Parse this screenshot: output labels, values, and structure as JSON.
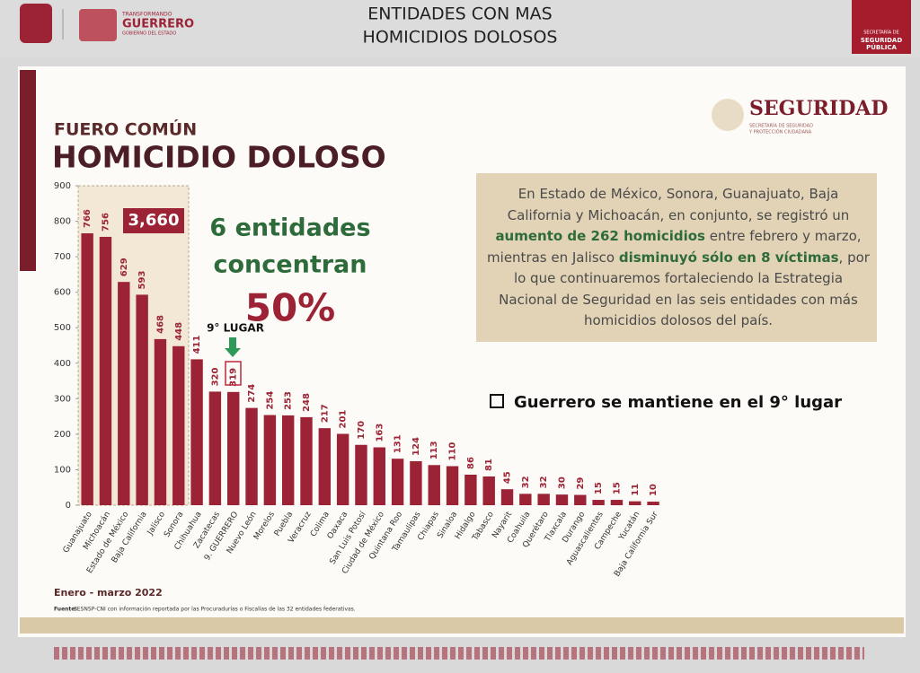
{
  "header": {
    "title_lines": [
      "ENTIDADES CON MAS",
      "HOMICIDIOS DOLOSOS"
    ],
    "left_logo": [
      "TRANSFORMANDO",
      "GUERRERO",
      "GOBIERNO DEL ESTADO"
    ],
    "right_logo": [
      "SECRETARÍA DE",
      "SEGURIDAD",
      "PÚBLICA"
    ]
  },
  "slide": {
    "kicker": "FUERO COMÚN",
    "headline": "HOMICIDIO DOLOSO",
    "brand": "SEGURIDAD",
    "brand_sub": [
      "SECRETARÍA DE SEGURIDAD",
      "Y PROTECCIÓN CIUDADANA"
    ],
    "total_box": "3,660",
    "concentrate_lines": [
      "6 entidades",
      "concentran"
    ],
    "concentrate_pct": "50%",
    "rank_note": "9° LUGAR",
    "paragraph": [
      "En Estado de México, Sonora, Guanajuato, Baja California y Michoacán, en conjunto, se registró un ",
      "aumento de 262 homicidios",
      " entre febrero y marzo, mientras en Jalisco ",
      "disminuyó sólo en 8 víctimas",
      ", por lo que continuaremos fortaleciendo la Estrategia Nacional de Seguridad en las seis entidades con más homicidios dolosos del país."
    ],
    "bullet": "Guerrero se mantiene en el 9° lugar",
    "period": "Enero - marzo 2022",
    "source_label": "Fuente:",
    "source": "SESNSP-CNI con información reportada por las Procuradurías o Fiscalías de las 32 entidades federativas."
  },
  "chart_data": {
    "type": "bar",
    "color": "#9b2335",
    "categories": [
      "Guanajuato",
      "Michoacán",
      "Estado de México",
      "Baja California",
      "Jalisco",
      "Sonora",
      "Chihuahua",
      "Zacatecas",
      "9. GUERRERO",
      "Nuevo León",
      "Morelos",
      "Puebla",
      "Veracruz",
      "Colima",
      "Oaxaca",
      "San Luis Potosí",
      "Ciudad de México",
      "Quintana Roo",
      "Tamaulipas",
      "Chiapas",
      "Sinaloa",
      "Hidalgo",
      "Tabasco",
      "Nayarit",
      "Coahuila",
      "Querétaro",
      "Tlaxcala",
      "Durango",
      "Aguascalientes",
      "Campeche",
      "Yucatán",
      "Baja California Sur"
    ],
    "values": [
      766,
      756,
      629,
      593,
      468,
      448,
      411,
      320,
      319,
      274,
      254,
      253,
      248,
      217,
      201,
      170,
      163,
      131,
      124,
      113,
      110,
      86,
      81,
      45,
      32,
      32,
      30,
      29,
      15,
      15,
      11,
      10
    ],
    "ylim": [
      0,
      900
    ],
    "yticks": [
      0,
      100,
      200,
      300,
      400,
      500,
      600,
      700,
      800,
      900
    ]
  }
}
